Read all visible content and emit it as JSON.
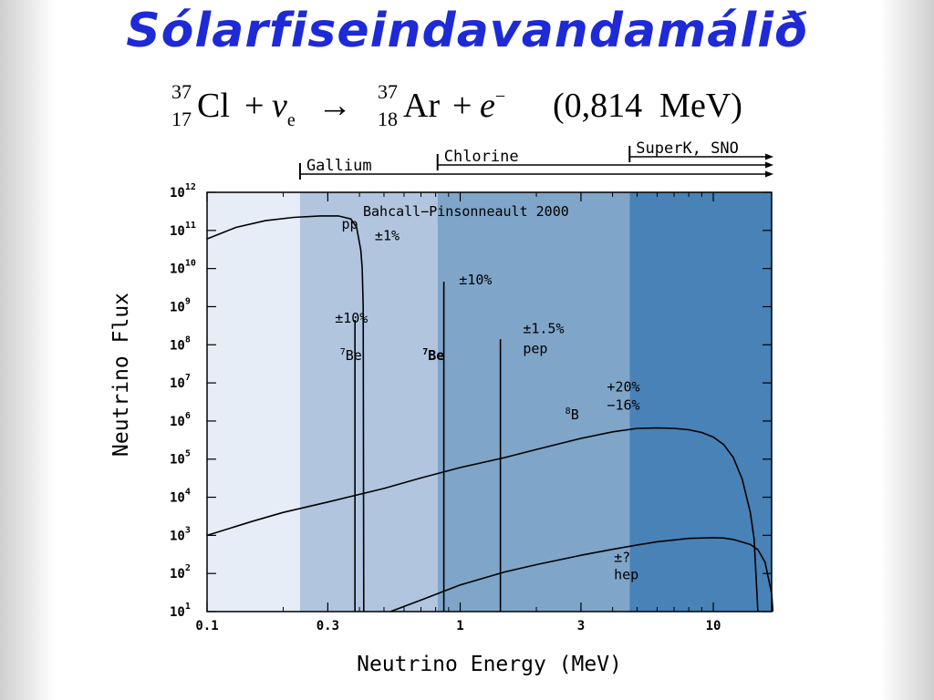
{
  "slide": {
    "title": "Sólarfiseindavandamálið",
    "equation": {
      "cl_mass": "37",
      "cl_z": "17",
      "cl_sym": "Cl",
      "plus1": "+",
      "nu": "ν",
      "nu_sub": "e",
      "arrow": "→",
      "ar_mass": "37",
      "ar_z": "18",
      "ar_sym": "Ar",
      "plus2": "+",
      "e": "e",
      "e_sup": "−",
      "energy": "(0,814  MeV)"
    }
  },
  "chart_data": {
    "type": "line",
    "title": "Bahcall−Pinsonneault 2000",
    "xlabel": "Neutrino Energy (MeV)",
    "ylabel": "Neutrino Flux",
    "xscale": "log",
    "yscale": "log",
    "xlim": [
      0.1,
      17
    ],
    "ylim": [
      10,
      1000000000000
    ],
    "xticks": [
      {
        "value": 0.1,
        "label": "0.1"
      },
      {
        "value": 0.3,
        "label": "0.3"
      },
      {
        "value": 1,
        "label": "1"
      },
      {
        "value": 3,
        "label": "3"
      },
      {
        "value": 10,
        "label": "10"
      }
    ],
    "yticks": [
      {
        "exp": 1,
        "base": "10",
        "sup": "1"
      },
      {
        "exp": 2,
        "base": "10",
        "sup": "2"
      },
      {
        "exp": 3,
        "base": "10",
        "sup": "3"
      },
      {
        "exp": 4,
        "base": "10",
        "sup": "4"
      },
      {
        "exp": 5,
        "base": "10",
        "sup": "5"
      },
      {
        "exp": 6,
        "base": "10",
        "sup": "6"
      },
      {
        "exp": 7,
        "base": "10",
        "sup": "7"
      },
      {
        "exp": 8,
        "base": "10",
        "sup": "8"
      },
      {
        "exp": 9,
        "base": "10",
        "sup": "9"
      },
      {
        "exp": 10,
        "base": "10",
        "sup": "10"
      },
      {
        "exp": 11,
        "base": "10",
        "sup": "11"
      },
      {
        "exp": 12,
        "base": "10",
        "sup": "12"
      }
    ],
    "regions": [
      {
        "x0": 0.1,
        "x1": 0.233,
        "color": "#e6edf6"
      },
      {
        "x0": 0.233,
        "x1": 0.814,
        "color": "#b1c5de"
      },
      {
        "x0": 0.814,
        "x1": 4.67,
        "color": "#7fa5c9"
      },
      {
        "x0": 4.67,
        "x1": 17,
        "color": "#4882b7"
      }
    ],
    "experiments": [
      {
        "name": "Gallium",
        "threshold": 0.233
      },
      {
        "name": "Chlorine",
        "threshold": 0.814
      },
      {
        "name": "SuperK, SNO",
        "threshold": 4.67
      }
    ],
    "series": [
      {
        "name": "pp",
        "points": [
          [
            0.1,
            60000000000
          ],
          [
            0.13,
            120000000000
          ],
          [
            0.17,
            180000000000
          ],
          [
            0.22,
            220000000000
          ],
          [
            0.28,
            240000000000
          ],
          [
            0.33,
            240000000000
          ],
          [
            0.37,
            200000000000
          ],
          [
            0.39,
            120000000000
          ],
          [
            0.405,
            30000000000
          ],
          [
            0.41,
            10000000000
          ],
          [
            0.414,
            1000000000
          ],
          [
            0.416,
            10
          ]
        ]
      },
      {
        "name": "8B",
        "points": [
          [
            0.1,
            1000
          ],
          [
            0.15,
            2300
          ],
          [
            0.2,
            4000
          ],
          [
            0.3,
            7500
          ],
          [
            0.5,
            17000
          ],
          [
            0.7,
            32000
          ],
          [
            1,
            60000
          ],
          [
            1.5,
            110000
          ],
          [
            2,
            180000
          ],
          [
            3,
            350000
          ],
          [
            4,
            520000
          ],
          [
            5,
            640000
          ],
          [
            6,
            660000
          ],
          [
            7,
            640000
          ],
          [
            8,
            590000
          ],
          [
            9,
            500000
          ],
          [
            10,
            380000
          ],
          [
            11,
            240000
          ],
          [
            12,
            110000
          ],
          [
            13,
            30000
          ],
          [
            14,
            4000
          ],
          [
            14.5,
            800
          ],
          [
            15,
            10
          ]
        ]
      },
      {
        "name": "hep",
        "points": [
          [
            0.53,
            10
          ],
          [
            0.7,
            20
          ],
          [
            1,
            50
          ],
          [
            1.5,
            110
          ],
          [
            2,
            170
          ],
          [
            3,
            300
          ],
          [
            4,
            430
          ],
          [
            5,
            560
          ],
          [
            6,
            680
          ],
          [
            8,
            830
          ],
          [
            10,
            870
          ],
          [
            11,
            850
          ],
          [
            12,
            780
          ],
          [
            14,
            580
          ],
          [
            15,
            420
          ],
          [
            16,
            200
          ],
          [
            17,
            30
          ],
          [
            17.2,
            10
          ]
        ]
      }
    ],
    "lines": [
      {
        "name": "7Be",
        "energy": 0.384,
        "flux": 450000000
      },
      {
        "name": "7Be",
        "energy": 0.862,
        "flux": 4500000000
      },
      {
        "name": "pep",
        "energy": 1.442,
        "flux": 140000000
      }
    ],
    "annotations": [
      {
        "text": "pp",
        "x": 0.34,
        "y": 110000000000
      },
      {
        "text": "±1%",
        "x": 0.46,
        "y": 55000000000
      },
      {
        "text": "±10%",
        "x": 0.32,
        "y": 380000000
      },
      {
        "text": "7Be",
        "x": 0.335,
        "y": 40000000,
        "bold": false
      },
      {
        "text": "±10%",
        "x": 0.99,
        "y": 3800000000
      },
      {
        "text": "7Be",
        "x": 0.71,
        "y": 40000000,
        "bold": true
      },
      {
        "text": "±1.5%",
        "x": 1.77,
        "y": 200000000
      },
      {
        "text": "pep",
        "x": 1.77,
        "y": 60000000
      },
      {
        "text": "+20%",
        "x": 3.8,
        "y": 6000000
      },
      {
        "text": "−16%",
        "x": 3.8,
        "y": 2000000
      },
      {
        "text": "8B",
        "x": 2.6,
        "y": 1100000
      },
      {
        "text": "±?",
        "x": 4.05,
        "y": 200
      },
      {
        "text": "hep",
        "x": 4.05,
        "y": 70
      }
    ]
  }
}
